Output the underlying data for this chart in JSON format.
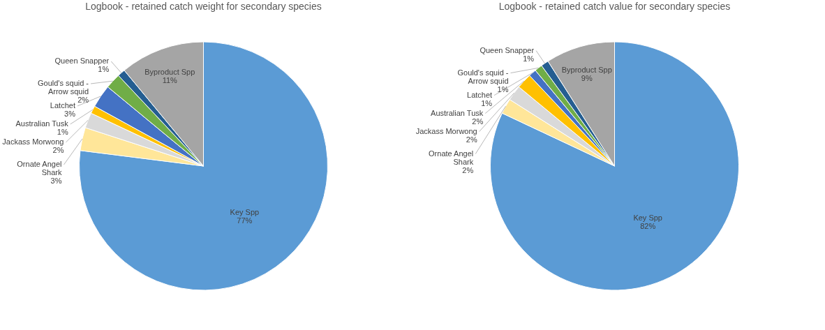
{
  "chart_data": [
    {
      "type": "pie",
      "title": "Logbook - retained catch weight for secondary species",
      "categories": [
        "Key Spp",
        "Ornate Angel Shark",
        "Jackass Morwong",
        "Australian Tusk",
        "Latchet",
        "Gould's squid - Arrow squid",
        "Queen Snapper",
        "Byproduct Spp"
      ],
      "values": [
        77,
        3,
        2,
        1,
        3,
        2,
        1,
        11
      ],
      "value_labels": [
        "77%",
        "3%",
        "2%",
        "1%",
        "3%",
        "2%",
        "1%",
        "11%"
      ],
      "colors": [
        "#5b9bd5",
        "#ffe699",
        "#d9d9d9",
        "#ffc000",
        "#4472c4",
        "#70ad47",
        "#255e91",
        "#a5a5a5"
      ],
      "legend": false
    },
    {
      "type": "pie",
      "title": "Logbook - retained catch value for secondary species",
      "categories": [
        "Key Spp",
        "Ornate Angel Shark",
        "Jackass Morwong",
        "Australian Tusk",
        "Latchet",
        "Gould's squid - Arrow squid",
        "Queen Snapper",
        "Byproduct Spp"
      ],
      "values": [
        82,
        2,
        2,
        2,
        1,
        1,
        1,
        9
      ],
      "value_labels": [
        "82%",
        "2%",
        "2%",
        "2%",
        "1%",
        "1%",
        "1%",
        "9%"
      ],
      "colors": [
        "#5b9bd5",
        "#ffe699",
        "#d9d9d9",
        "#ffc000",
        "#4472c4",
        "#70ad47",
        "#255e91",
        "#a5a5a5"
      ],
      "legend": false
    }
  ]
}
